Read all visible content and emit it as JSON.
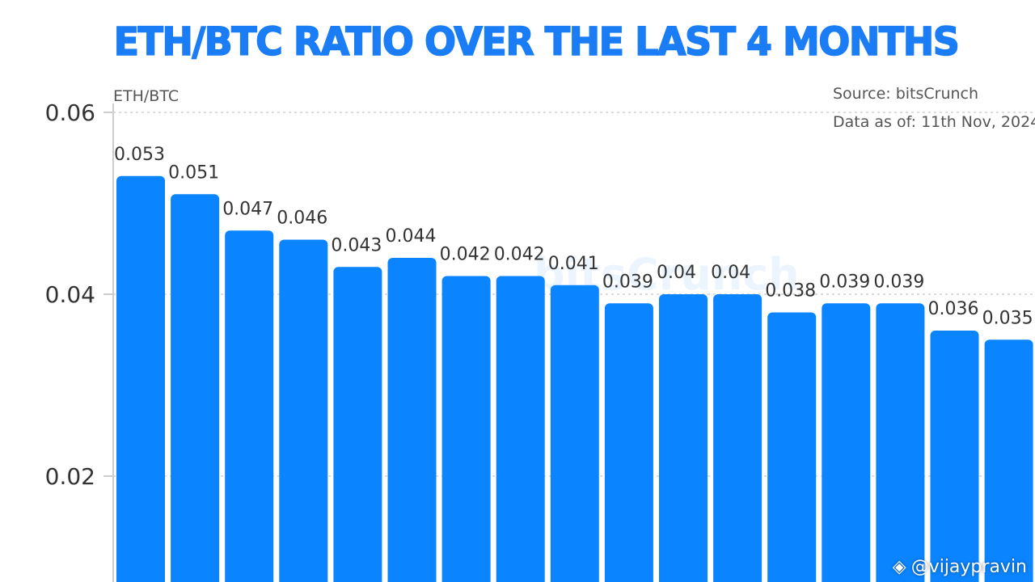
{
  "chart_data": {
    "type": "bar",
    "title": "ETH/BTC RATIO OVER THE LAST 4 MONTHS",
    "ylabel": "ETH/BTC",
    "xlabel": "",
    "ylim": [
      0,
      0.06
    ],
    "yticks": [
      "0.06",
      "0.04",
      "0.02"
    ],
    "ytick_values": [
      0.06,
      0.04,
      0.02
    ],
    "grid": true,
    "values": [
      0.053,
      0.051,
      0.047,
      0.046,
      0.043,
      0.044,
      0.042,
      0.042,
      0.041,
      0.039,
      0.04,
      0.04,
      0.038,
      0.039,
      0.039,
      0.036,
      0.035
    ],
    "value_labels": [
      "0.053",
      "0.051",
      "0.047",
      "0.046",
      "0.043",
      "0.044",
      "0.042",
      "0.042",
      "0.041",
      "0.039",
      "0.04",
      "0.04",
      "0.038",
      "0.039",
      "0.039",
      "0.036",
      "0.035"
    ],
    "bar_color": "#0a84ff",
    "source": "Source: bitsCrunch",
    "data_as_of": "Data as of: 11th Nov, 2024",
    "watermark": "bitsCrunch"
  },
  "credit": {
    "icon": "binance-diamond-icon",
    "handle": "@vijaypravin"
  }
}
